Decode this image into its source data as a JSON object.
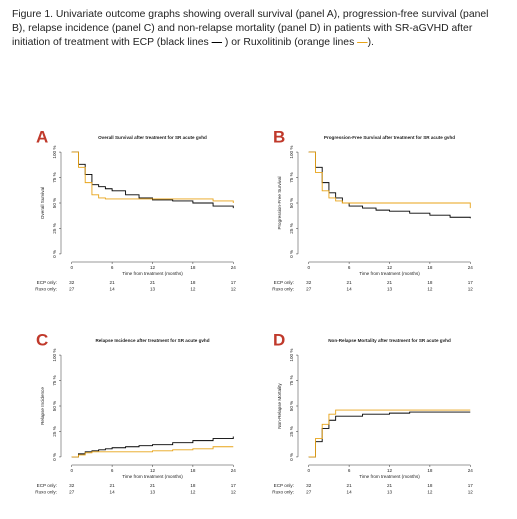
{
  "caption": [
    "Figure 1. Univariate outcome graphs showing overall survival (panel A), progression-free survival (panel B), relapse incidence (panel C) and non-relapse mortality (panel D) in patients with SR-aGVHD after initiation of treatment with ECP (black lines ",
    "—",
    " ) or Ruxolitinib (orange lines ",
    "—",
    ")."
  ],
  "chart_data": [
    {
      "type": "step",
      "panel": "A",
      "title": "Overall Survival after treatment for SR acute gvhd",
      "ylabel": "Overall Survival",
      "xlabel": "Time from treatment (months)",
      "x": [
        0,
        1,
        2,
        3,
        4,
        5,
        6,
        8,
        10,
        12,
        15,
        18,
        21,
        24
      ],
      "series": [
        {
          "color": "#000000",
          "values": [
            100,
            88,
            78,
            68,
            66,
            64,
            62,
            58,
            55,
            53,
            52,
            50,
            47,
            45
          ]
        },
        {
          "color": "#e8a317",
          "values": [
            100,
            85,
            70,
            58,
            55,
            54,
            54,
            54,
            54,
            54,
            54,
            54,
            52,
            50
          ]
        }
      ],
      "xlim": [
        -1,
        25
      ],
      "ylim": [
        -4,
        104
      ],
      "xticks": [
        0,
        6,
        12,
        18,
        24
      ],
      "yticks": [
        {
          "value": 0,
          "label": "0 %"
        },
        {
          "value": 25,
          "label": "25 %"
        },
        {
          "value": 50,
          "label": "50 %"
        },
        {
          "value": 75,
          "label": "75 %"
        },
        {
          "value": 100,
          "label": "100 %"
        }
      ],
      "risk_table": [
        {
          "label": "ECP only:",
          "color": "#000000",
          "values": [
            32,
            21,
            21,
            18,
            17
          ]
        },
        {
          "label": "Ruxo only:",
          "color": "#e8a317",
          "values": [
            27,
            14,
            13,
            12,
            12
          ]
        }
      ]
    },
    {
      "type": "step",
      "panel": "B",
      "title": "Progression-Free Survival after treatment for SR acute gvhd",
      "ylabel": "Progression-Free Survival",
      "xlabel": "Time from treatment (months)",
      "x": [
        0,
        1,
        2,
        3,
        4,
        5,
        6,
        8,
        10,
        12,
        15,
        18,
        21,
        24
      ],
      "series": [
        {
          "color": "#000000",
          "values": [
            100,
            85,
            70,
            60,
            55,
            50,
            47,
            45,
            43,
            42,
            40,
            38,
            36,
            35
          ]
        },
        {
          "color": "#e8a317",
          "values": [
            100,
            80,
            62,
            55,
            52,
            50,
            50,
            50,
            50,
            50,
            50,
            50,
            50,
            45
          ]
        }
      ],
      "xlim": [
        -1,
        25
      ],
      "ylim": [
        -4,
        104
      ],
      "xticks": [
        0,
        6,
        12,
        18,
        24
      ],
      "yticks": [
        {
          "value": 0,
          "label": "0 %"
        },
        {
          "value": 25,
          "label": "25 %"
        },
        {
          "value": 50,
          "label": "50 %"
        },
        {
          "value": 75,
          "label": "75 %"
        },
        {
          "value": 100,
          "label": "100 %"
        }
      ],
      "risk_table": [
        {
          "label": "ECP only:",
          "color": "#000000",
          "values": [
            32,
            21,
            21,
            18,
            17
          ]
        },
        {
          "label": "Ruxo only:",
          "color": "#e8a317",
          "values": [
            27,
            14,
            13,
            12,
            12
          ]
        }
      ]
    },
    {
      "type": "step",
      "panel": "C",
      "title": "Relapse Incidence after treatment for SR acute gvhd",
      "ylabel": "Relapse Incidence",
      "xlabel": "Time from treatment (months)",
      "x": [
        0,
        1,
        2,
        3,
        4,
        5,
        6,
        8,
        10,
        12,
        15,
        18,
        21,
        24
      ],
      "series": [
        {
          "color": "#000000",
          "values": [
            0,
            3,
            5,
            6,
            7,
            8,
            9,
            10,
            11,
            12,
            14,
            16,
            18,
            20
          ]
        },
        {
          "color": "#e8a317",
          "values": [
            0,
            2,
            4,
            5,
            5,
            5,
            5,
            5,
            5,
            6,
            7,
            8,
            10,
            10
          ]
        }
      ],
      "xlim": [
        -1,
        25
      ],
      "ylim": [
        -4,
        104
      ],
      "xticks": [
        0,
        6,
        12,
        18,
        24
      ],
      "yticks": [
        {
          "value": 0,
          "label": "0 %"
        },
        {
          "value": 25,
          "label": "25 %"
        },
        {
          "value": 50,
          "label": "50 %"
        },
        {
          "value": 75,
          "label": "75 %"
        },
        {
          "value": 100,
          "label": "100 %"
        }
      ],
      "risk_table": [
        {
          "label": "ECP only:",
          "color": "#000000",
          "values": [
            32,
            21,
            21,
            18,
            17
          ]
        },
        {
          "label": "Ruxo only:",
          "color": "#e8a317",
          "values": [
            27,
            14,
            13,
            12,
            12
          ]
        }
      ]
    },
    {
      "type": "step",
      "panel": "D",
      "title": "Non-Relapse Mortality after treatment for SR acute gvhd",
      "ylabel": "Non-Relapse Mortality",
      "xlabel": "Time from treatment (months)",
      "x": [
        0,
        1,
        2,
        3,
        4,
        5,
        6,
        8,
        10,
        12,
        15,
        18,
        21,
        24
      ],
      "series": [
        {
          "color": "#000000",
          "values": [
            0,
            15,
            28,
            36,
            40,
            40,
            40,
            42,
            42,
            43,
            44,
            44,
            44,
            44
          ]
        },
        {
          "color": "#e8a317",
          "values": [
            0,
            18,
            32,
            42,
            46,
            46,
            46,
            46,
            46,
            46,
            46,
            46,
            46,
            46
          ]
        }
      ],
      "xlim": [
        -1,
        25
      ],
      "ylim": [
        -4,
        104
      ],
      "xticks": [
        0,
        6,
        12,
        18,
        24
      ],
      "yticks": [
        {
          "value": 0,
          "label": "0 %"
        },
        {
          "value": 25,
          "label": "25 %"
        },
        {
          "value": 50,
          "label": "50 %"
        },
        {
          "value": 75,
          "label": "75 %"
        },
        {
          "value": 100,
          "label": "100 %"
        }
      ],
      "risk_table": [
        {
          "label": "ECP only:",
          "color": "#000000",
          "values": [
            32,
            21,
            21,
            18,
            17
          ]
        },
        {
          "label": "Ruxo only:",
          "color": "#e8a317",
          "values": [
            27,
            14,
            13,
            12,
            12
          ]
        }
      ]
    }
  ]
}
